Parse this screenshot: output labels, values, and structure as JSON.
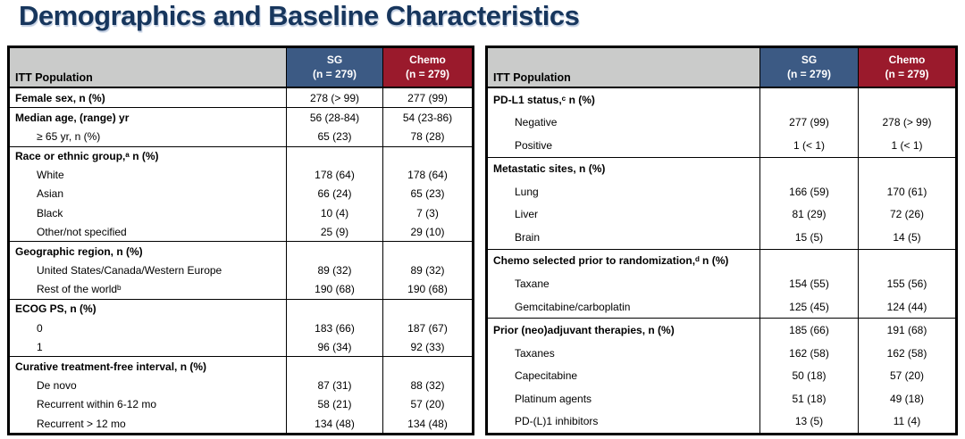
{
  "title": "Demographics and Baseline Characteristics",
  "colors": {
    "title_navy": "#17365d",
    "header_gray": "#cacbca",
    "sg_blue": "#3c5a84",
    "chemo_red": "#9a1a2c"
  },
  "tables": [
    {
      "header": {
        "label": "ITT Population",
        "columns": [
          {
            "drug": "SG",
            "n": "(n = 279)"
          },
          {
            "drug": "Chemo",
            "n": "(n = 279)"
          }
        ]
      },
      "rows": [
        {
          "label": "Female sex, n (%)",
          "style": "group",
          "section": true,
          "sg": "278 (> 99)",
          "chemo": "277 (99)"
        },
        {
          "label": "Median age, (range) yr",
          "style": "group",
          "section": true,
          "sg": "56 (28-84)",
          "chemo": "54 (23-86)"
        },
        {
          "label": "≥ 65 yr, n (%)",
          "style": "sub",
          "section": false,
          "sg": "65 (23)",
          "chemo": "78 (28)"
        },
        {
          "label": "Race or ethnic group,ᵃ n (%)",
          "style": "group",
          "section": true,
          "sg": "",
          "chemo": ""
        },
        {
          "label": "White",
          "style": "sub",
          "section": false,
          "sg": "178 (64)",
          "chemo": "178 (64)"
        },
        {
          "label": "Asian",
          "style": "sub",
          "section": false,
          "sg": "66 (24)",
          "chemo": "65 (23)"
        },
        {
          "label": "Black",
          "style": "sub",
          "section": false,
          "sg": "10 (4)",
          "chemo": "7 (3)"
        },
        {
          "label": "Other/not specified",
          "style": "sub",
          "section": false,
          "sg": "25 (9)",
          "chemo": "29 (10)"
        },
        {
          "label": "Geographic region, n (%)",
          "style": "group",
          "section": true,
          "sg": "",
          "chemo": ""
        },
        {
          "label": "United States/Canada/Western Europe",
          "style": "sub",
          "section": false,
          "sg": "89 (32)",
          "chemo": "89 (32)"
        },
        {
          "label": "Rest of the worldᵇ",
          "style": "sub",
          "section": false,
          "sg": "190 (68)",
          "chemo": "190 (68)"
        },
        {
          "label": "ECOG PS, n (%)",
          "style": "group",
          "section": true,
          "sg": "",
          "chemo": ""
        },
        {
          "label": "0",
          "style": "sub",
          "section": false,
          "sg": "183 (66)",
          "chemo": "187 (67)"
        },
        {
          "label": "1",
          "style": "sub",
          "section": false,
          "sg": "96 (34)",
          "chemo": "92 (33)"
        },
        {
          "label": "Curative treatment-free interval, n (%)",
          "style": "group",
          "section": true,
          "sg": "",
          "chemo": ""
        },
        {
          "label": "De novo",
          "style": "sub",
          "section": false,
          "sg": "87 (31)",
          "chemo": "88 (32)"
        },
        {
          "label": "Recurrent within 6-12 mo",
          "style": "sub",
          "section": false,
          "sg": "58 (21)",
          "chemo": "57 (20)"
        },
        {
          "label": "Recurrent > 12 mo",
          "style": "sub",
          "section": false,
          "sg": "134 (48)",
          "chemo": "134 (48)"
        }
      ]
    },
    {
      "header": {
        "label": "ITT Population",
        "columns": [
          {
            "drug": "SG",
            "n": "(n = 279)"
          },
          {
            "drug": "Chemo",
            "n": "(n = 279)"
          }
        ]
      },
      "rows": [
        {
          "label": "PD-L1 status,ᶜ n (%)",
          "style": "group",
          "section": true,
          "sg": "",
          "chemo": ""
        },
        {
          "label": "Negative",
          "style": "sub",
          "section": false,
          "sg": "277 (99)",
          "chemo": "278 (> 99)"
        },
        {
          "label": "Positive",
          "style": "sub",
          "section": false,
          "sg": "1 (< 1)",
          "chemo": "1 (< 1)"
        },
        {
          "label": "Metastatic sites, n (%)",
          "style": "group",
          "section": true,
          "sg": "",
          "chemo": ""
        },
        {
          "label": "Lung",
          "style": "sub",
          "section": false,
          "sg": "166 (59)",
          "chemo": "170 (61)"
        },
        {
          "label": "Liver",
          "style": "sub",
          "section": false,
          "sg": "81 (29)",
          "chemo": "72 (26)"
        },
        {
          "label": "Brain",
          "style": "sub",
          "section": false,
          "sg": "15 (5)",
          "chemo": "14 (5)"
        },
        {
          "label": "Chemo selected prior to randomization,ᵈ n (%)",
          "style": "group",
          "section": true,
          "sg": "",
          "chemo": ""
        },
        {
          "label": "Taxane",
          "style": "sub",
          "section": false,
          "sg": "154 (55)",
          "chemo": "155 (56)"
        },
        {
          "label": "Gemcitabine/carboplatin",
          "style": "sub",
          "section": false,
          "sg": "125 (45)",
          "chemo": "124 (44)"
        },
        {
          "label": "Prior (neo)adjuvant therapies, n (%)",
          "style": "group",
          "section": true,
          "sg": "185 (66)",
          "chemo": "191 (68)"
        },
        {
          "label": "Taxanes",
          "style": "sub",
          "section": false,
          "sg": "162 (58)",
          "chemo": "162 (58)"
        },
        {
          "label": "Capecitabine",
          "style": "sub",
          "section": false,
          "sg": "50 (18)",
          "chemo": "57 (20)"
        },
        {
          "label": "Platinum agents",
          "style": "sub",
          "section": false,
          "sg": "51 (18)",
          "chemo": "49 (18)"
        },
        {
          "label": "PD-(L)1 inhibitors",
          "style": "sub",
          "section": false,
          "sg": "13 (5)",
          "chemo": "11 (4)"
        }
      ]
    }
  ]
}
